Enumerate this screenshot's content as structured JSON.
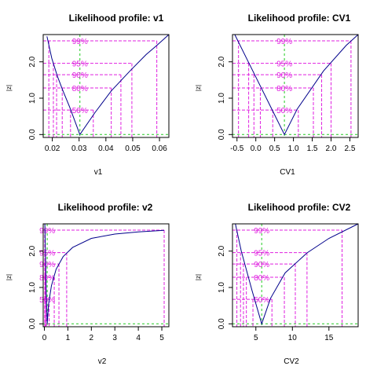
{
  "colors": {
    "curve": "#00008b",
    "conf": "#e020e0",
    "mle": "#22cc22",
    "frame": "#000000"
  },
  "chart_data": [
    {
      "type": "line",
      "title": "Likelihood profile: v1",
      "xlabel": "v1",
      "ylabel": "|z|",
      "xlim": [
        0.0166,
        0.0635
      ],
      "ylim": [
        -0.08,
        2.75
      ],
      "xticks": [
        0.02,
        0.03,
        0.04,
        0.05,
        0.06
      ],
      "xtick_labels": [
        "0.02",
        "0.03",
        "0.04",
        "0.05",
        "0.06"
      ],
      "yticks": [
        0.0,
        1.0,
        2.0
      ],
      "ytick_labels": [
        "0.0",
        "1.0",
        "2.0"
      ],
      "mle": 0.0303,
      "curve": {
        "x": [
          0.018,
          0.0198,
          0.0219,
          0.024,
          0.0265,
          0.0303,
          0.0359,
          0.042,
          0.049,
          0.055,
          0.059,
          0.0635
        ],
        "y": [
          2.7,
          2.1,
          1.6,
          1.2,
          0.75,
          0.0,
          0.6,
          1.2,
          1.75,
          2.2,
          2.45,
          2.75
        ]
      },
      "levels": [
        {
          "label": "99%",
          "z": 2.576,
          "lo": 0.0187,
          "hi": 0.059
        },
        {
          "label": "95%",
          "z": 1.96,
          "lo": 0.0204,
          "hi": 0.0497
        },
        {
          "label": "90%",
          "z": 1.645,
          "lo": 0.0216,
          "hi": 0.0456
        },
        {
          "label": "80%",
          "z": 1.282,
          "lo": 0.0237,
          "hi": 0.042
        },
        {
          "label": "50%",
          "z": 0.674,
          "lo": 0.0268,
          "hi": 0.0353
        }
      ]
    },
    {
      "type": "line",
      "title": "Likelihood profile: CV1",
      "xlabel": "CV1",
      "ylabel": "|z|",
      "xlim": [
        -0.62,
        2.72
      ],
      "ylim": [
        -0.08,
        2.75
      ],
      "xticks": [
        -0.5,
        0.0,
        0.5,
        1.0,
        1.5,
        2.0,
        2.5
      ],
      "xtick_labels": [
        "-0.5",
        "0.0",
        "0.5",
        "1.0",
        "1.5",
        "2.0",
        "2.5"
      ],
      "yticks": [
        0.0,
        1.0,
        2.0
      ],
      "ytick_labels": [
        "0.0",
        "1.0",
        "2.0"
      ],
      "mle": 0.76,
      "curve": {
        "x": [
          -0.56,
          -0.2,
          0.4,
          0.76,
          1.1,
          1.8,
          2.4,
          2.72
        ],
        "y": [
          2.75,
          2.0,
          0.75,
          0.0,
          0.7,
          1.75,
          2.45,
          2.75
        ]
      },
      "levels": [
        {
          "label": "99%",
          "z": 2.576,
          "lo": -0.46,
          "hi": 2.53
        },
        {
          "label": "95%",
          "z": 1.96,
          "lo": -0.19,
          "hi": 2.0
        },
        {
          "label": "90%",
          "z": 1.645,
          "lo": -0.05,
          "hi": 1.75
        },
        {
          "label": "80%",
          "z": 1.282,
          "lo": 0.12,
          "hi": 1.53
        },
        {
          "label": "50%",
          "z": 0.674,
          "lo": 0.45,
          "hi": 1.13
        }
      ]
    },
    {
      "type": "line",
      "title": "Likelihood profile: v2",
      "xlabel": "v2",
      "ylabel": "|z|",
      "xlim": [
        -0.05,
        5.3
      ],
      "ylim": [
        -0.08,
        2.75
      ],
      "xticks": [
        0,
        1,
        2,
        3,
        4,
        5
      ],
      "xtick_labels": [
        "0",
        "1",
        "2",
        "3",
        "4",
        "5"
      ],
      "yticks": [
        0.0,
        1.0,
        2.0
      ],
      "ytick_labels": [
        "0.0",
        "1.0",
        "2.0"
      ],
      "mle": 0.12,
      "curve": {
        "x": [
          0.02,
          0.05,
          0.08,
          0.12,
          0.18,
          0.3,
          0.5,
          0.8,
          1.2,
          2.0,
          3.0,
          4.0,
          5.1
        ],
        "y": [
          2.75,
          1.8,
          0.8,
          0.0,
          0.55,
          1.05,
          1.5,
          1.85,
          2.1,
          2.35,
          2.47,
          2.53,
          2.57
        ]
      },
      "levels": [
        {
          "label": "99%",
          "z": 2.576,
          "lo": 0.015,
          "hi": 5.1
        },
        {
          "label": "95%",
          "z": 1.96,
          "lo": 0.03,
          "hi": 0.95
        },
        {
          "label": "90%",
          "z": 1.645,
          "lo": 0.04,
          "hi": 0.62
        },
        {
          "label": "80%",
          "z": 1.282,
          "lo": 0.05,
          "hi": 0.42
        },
        {
          "label": "50%",
          "z": 0.674,
          "lo": 0.09,
          "hi": 0.2
        }
      ]
    },
    {
      "type": "line",
      "title": "Likelihood profile: CV2",
      "xlabel": "CV2",
      "ylabel": "|z|",
      "xlim": [
        1.8,
        19.0
      ],
      "ylim": [
        -0.08,
        2.75
      ],
      "xticks": [
        5,
        10,
        15
      ],
      "xtick_labels": [
        "5",
        "10",
        "15"
      ],
      "yticks": [
        0.0,
        1.0,
        2.0
      ],
      "ytick_labels": [
        "0.0",
        "1.0",
        "2.0"
      ],
      "mle": 5.8,
      "curve": {
        "x": [
          2.2,
          3.0,
          4.5,
          5.8,
          7.0,
          9.0,
          12.0,
          15.0,
          19.0
        ],
        "y": [
          2.75,
          2.0,
          0.9,
          0.0,
          0.7,
          1.4,
          1.95,
          2.35,
          2.75
        ]
      },
      "levels": [
        {
          "label": "99%",
          "z": 2.576,
          "lo": 2.4,
          "hi": 16.8
        },
        {
          "label": "95%",
          "z": 1.96,
          "lo": 2.9,
          "hi": 12.0
        },
        {
          "label": "90%",
          "z": 1.645,
          "lo": 3.3,
          "hi": 10.4
        },
        {
          "label": "80%",
          "z": 1.282,
          "lo": 3.7,
          "hi": 8.9
        },
        {
          "label": "50%",
          "z": 0.674,
          "lo": 4.6,
          "hi": 7.2
        }
      ]
    }
  ]
}
